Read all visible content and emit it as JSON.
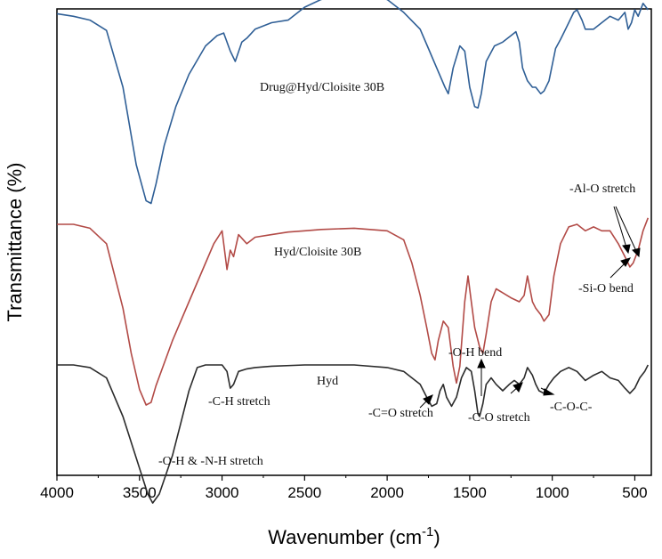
{
  "chart_data": {
    "type": "line",
    "xlabel": "Wavenumber (cm",
    "xlabel_sup": "-1",
    "xlabel_close": ")",
    "ylabel": "Transmittance (%)",
    "xlim": [
      4000,
      400
    ],
    "x_reversed": true,
    "x_ticks": [
      4000,
      3500,
      3000,
      2500,
      2000,
      1500,
      1000,
      500
    ],
    "y_ticks_shown": false,
    "grid": false,
    "series": [
      {
        "name": "Drug@Hyd/Cloisite 30B",
        "color": "#2f5f96",
        "points": [
          [
            4000,
            17
          ],
          [
            3900,
            15
          ],
          [
            3800,
            12
          ],
          [
            3700,
            4
          ],
          [
            3600,
            -40
          ],
          [
            3520,
            -100
          ],
          [
            3460,
            -128
          ],
          [
            3430,
            -130
          ],
          [
            3400,
            -115
          ],
          [
            3350,
            -85
          ],
          [
            3280,
            -55
          ],
          [
            3200,
            -30
          ],
          [
            3100,
            -8
          ],
          [
            3030,
            0
          ],
          [
            2990,
            2
          ],
          [
            2950,
            -12
          ],
          [
            2920,
            -20
          ],
          [
            2880,
            -5
          ],
          [
            2850,
            -2
          ],
          [
            2800,
            5
          ],
          [
            2700,
            10
          ],
          [
            2600,
            12
          ],
          [
            2500,
            22
          ],
          [
            2400,
            28
          ],
          [
            2200,
            32
          ],
          [
            2000,
            28
          ],
          [
            1900,
            18
          ],
          [
            1800,
            5
          ],
          [
            1750,
            -10
          ],
          [
            1700,
            -25
          ],
          [
            1650,
            -40
          ],
          [
            1630,
            -45
          ],
          [
            1600,
            -25
          ],
          [
            1560,
            -8
          ],
          [
            1530,
            -12
          ],
          [
            1500,
            -40
          ],
          [
            1470,
            -55
          ],
          [
            1450,
            -56
          ],
          [
            1430,
            -45
          ],
          [
            1400,
            -20
          ],
          [
            1350,
            -8
          ],
          [
            1300,
            -5
          ],
          [
            1250,
            0
          ],
          [
            1220,
            3
          ],
          [
            1200,
            -5
          ],
          [
            1180,
            -25
          ],
          [
            1150,
            -35
          ],
          [
            1120,
            -40
          ],
          [
            1100,
            -40
          ],
          [
            1070,
            -45
          ],
          [
            1050,
            -43
          ],
          [
            1020,
            -35
          ],
          [
            980,
            -10
          ],
          [
            950,
            -3
          ],
          [
            900,
            10
          ],
          [
            870,
            18
          ],
          [
            850,
            20
          ],
          [
            820,
            12
          ],
          [
            800,
            5
          ],
          [
            750,
            5
          ],
          [
            700,
            10
          ],
          [
            650,
            15
          ],
          [
            600,
            12
          ],
          [
            560,
            18
          ],
          [
            540,
            5
          ],
          [
            520,
            10
          ],
          [
            500,
            20
          ],
          [
            480,
            15
          ],
          [
            450,
            25
          ],
          [
            420,
            20
          ]
        ]
      },
      {
        "name": "Hyd/Cloisite 30B",
        "color": "#b24a46",
        "points": [
          [
            4000,
            0
          ],
          [
            3900,
            0
          ],
          [
            3800,
            -3
          ],
          [
            3700,
            -15
          ],
          [
            3600,
            -65
          ],
          [
            3550,
            -100
          ],
          [
            3500,
            -128
          ],
          [
            3460,
            -140
          ],
          [
            3430,
            -138
          ],
          [
            3400,
            -125
          ],
          [
            3300,
            -90
          ],
          [
            3200,
            -60
          ],
          [
            3100,
            -30
          ],
          [
            3050,
            -15
          ],
          [
            3000,
            -5
          ],
          [
            2970,
            -35
          ],
          [
            2950,
            -20
          ],
          [
            2930,
            -25
          ],
          [
            2900,
            -8
          ],
          [
            2850,
            -15
          ],
          [
            2800,
            -10
          ],
          [
            2700,
            -8
          ],
          [
            2600,
            -6
          ],
          [
            2500,
            -5
          ],
          [
            2400,
            -4
          ],
          [
            2200,
            -3
          ],
          [
            2000,
            -5
          ],
          [
            1900,
            -12
          ],
          [
            1850,
            -30
          ],
          [
            1800,
            -55
          ],
          [
            1760,
            -80
          ],
          [
            1730,
            -100
          ],
          [
            1710,
            -105
          ],
          [
            1690,
            -90
          ],
          [
            1660,
            -75
          ],
          [
            1630,
            -80
          ],
          [
            1600,
            -110
          ],
          [
            1580,
            -123
          ],
          [
            1560,
            -110
          ],
          [
            1530,
            -60
          ],
          [
            1510,
            -40
          ],
          [
            1490,
            -60
          ],
          [
            1470,
            -80
          ],
          [
            1440,
            -95
          ],
          [
            1420,
            -100
          ],
          [
            1400,
            -85
          ],
          [
            1370,
            -60
          ],
          [
            1340,
            -50
          ],
          [
            1300,
            -53
          ],
          [
            1250,
            -57
          ],
          [
            1200,
            -60
          ],
          [
            1170,
            -55
          ],
          [
            1150,
            -40
          ],
          [
            1120,
            -60
          ],
          [
            1100,
            -65
          ],
          [
            1070,
            -70
          ],
          [
            1050,
            -75
          ],
          [
            1020,
            -70
          ],
          [
            990,
            -40
          ],
          [
            950,
            -15
          ],
          [
            900,
            -2
          ],
          [
            850,
            0
          ],
          [
            800,
            -5
          ],
          [
            750,
            -2
          ],
          [
            700,
            -5
          ],
          [
            650,
            -5
          ],
          [
            600,
            -15
          ],
          [
            560,
            -25
          ],
          [
            530,
            -33
          ],
          [
            510,
            -30
          ],
          [
            480,
            -20
          ],
          [
            450,
            -5
          ],
          [
            420,
            5
          ]
        ]
      },
      {
        "name": "Hyd",
        "color": "#2b2b2b",
        "points": [
          [
            4000,
            0
          ],
          [
            3900,
            0
          ],
          [
            3800,
            -2
          ],
          [
            3700,
            -10
          ],
          [
            3600,
            -40
          ],
          [
            3500,
            -80
          ],
          [
            3450,
            -100
          ],
          [
            3420,
            -107
          ],
          [
            3380,
            -100
          ],
          [
            3300,
            -70
          ],
          [
            3250,
            -45
          ],
          [
            3200,
            -20
          ],
          [
            3150,
            -2
          ],
          [
            3100,
            0
          ],
          [
            3000,
            0
          ],
          [
            2970,
            -5
          ],
          [
            2950,
            -18
          ],
          [
            2930,
            -15
          ],
          [
            2900,
            -5
          ],
          [
            2850,
            -3
          ],
          [
            2800,
            -2
          ],
          [
            2700,
            -1
          ],
          [
            2500,
            0
          ],
          [
            2200,
            0
          ],
          [
            2000,
            -2
          ],
          [
            1900,
            -5
          ],
          [
            1850,
            -10
          ],
          [
            1800,
            -15
          ],
          [
            1760,
            -25
          ],
          [
            1730,
            -32
          ],
          [
            1700,
            -30
          ],
          [
            1680,
            -20
          ],
          [
            1660,
            -15
          ],
          [
            1640,
            -25
          ],
          [
            1610,
            -32
          ],
          [
            1580,
            -25
          ],
          [
            1550,
            -10
          ],
          [
            1520,
            -2
          ],
          [
            1490,
            -5
          ],
          [
            1470,
            -20
          ],
          [
            1450,
            -38
          ],
          [
            1440,
            -40
          ],
          [
            1420,
            -30
          ],
          [
            1400,
            -15
          ],
          [
            1370,
            -10
          ],
          [
            1340,
            -15
          ],
          [
            1300,
            -20
          ],
          [
            1260,
            -15
          ],
          [
            1230,
            -12
          ],
          [
            1200,
            -15
          ],
          [
            1170,
            -10
          ],
          [
            1150,
            -2
          ],
          [
            1120,
            -8
          ],
          [
            1100,
            -15
          ],
          [
            1080,
            -20
          ],
          [
            1050,
            -22
          ],
          [
            1020,
            -15
          ],
          [
            990,
            -10
          ],
          [
            950,
            -5
          ],
          [
            900,
            -2
          ],
          [
            850,
            -5
          ],
          [
            800,
            -12
          ],
          [
            750,
            -8
          ],
          [
            700,
            -5
          ],
          [
            650,
            -10
          ],
          [
            600,
            -12
          ],
          [
            560,
            -18
          ],
          [
            530,
            -22
          ],
          [
            500,
            -18
          ],
          [
            470,
            -10
          ],
          [
            440,
            -5
          ],
          [
            420,
            0
          ]
        ]
      }
    ],
    "annotations": [
      {
        "text": "Drug@Hyd/Cloisite 30B"
      },
      {
        "text": "Hyd/Cloisite 30B"
      },
      {
        "text": "Hyd"
      },
      {
        "text": "-C-H stretch"
      },
      {
        "text": "-O-H & -N-H stretch"
      },
      {
        "text": "-C=O stretch"
      },
      {
        "text": "-O-H bend"
      },
      {
        "text": "-C-O stretch"
      },
      {
        "text": "-C-O-C-"
      },
      {
        "text": "-Al-O stretch"
      },
      {
        "text": "-Si-O bend"
      }
    ]
  }
}
